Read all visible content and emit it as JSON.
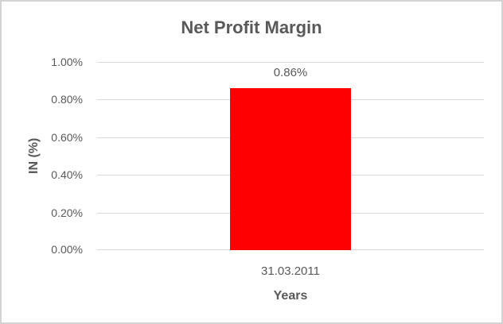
{
  "chart_data": {
    "type": "bar",
    "title": "Net Profit Margin",
    "categories": [
      "31.03.2011"
    ],
    "values": [
      0.86
    ],
    "data_labels": [
      "0.86%"
    ],
    "xlabel": "Years",
    "ylabel": "IN (%)",
    "ylim": [
      0,
      1
    ],
    "yticks": [
      "0.00%",
      "0.20%",
      "0.40%",
      "0.60%",
      "0.80%",
      "1.00%"
    ],
    "ytick_values": [
      0,
      0.2,
      0.4,
      0.6,
      0.8,
      1.0
    ],
    "grid": true,
    "legend_position": "none",
    "colors": {
      "bar": "#FF0000",
      "text": "#595959",
      "gridline": "#D9D9D9",
      "axis_line": "#D6D6D6",
      "background": "#FFFFFF",
      "border": "#D2D2D2"
    }
  }
}
